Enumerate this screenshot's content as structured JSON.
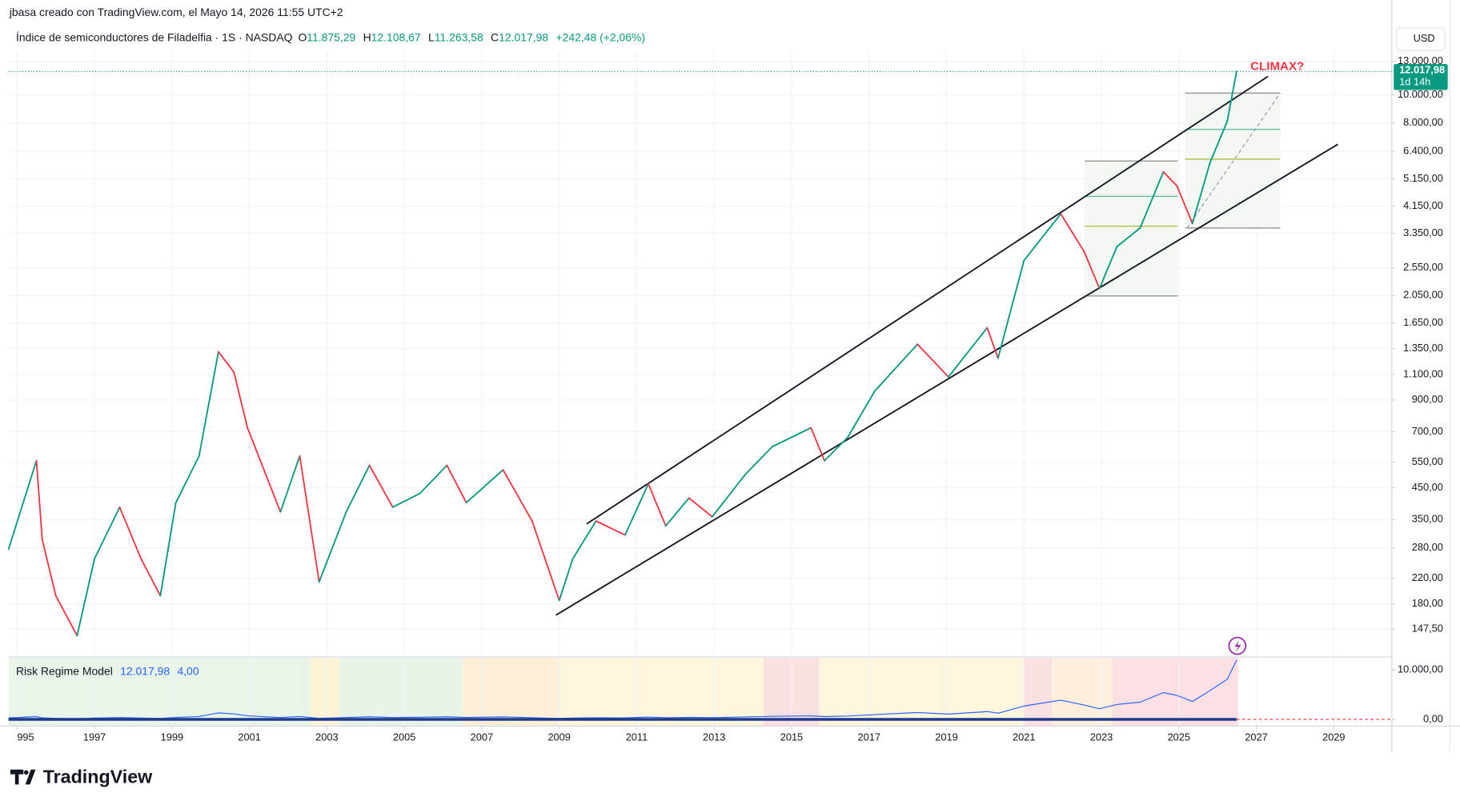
{
  "header": {
    "credit": "jbasa creado con TradingView.com, el Mayo 14, 2026 11:55 UTC+2",
    "currency": "USD",
    "logo": "TradingView"
  },
  "chart_data": [
    {
      "type": "line",
      "title": "Índice de semiconductores de Filadelfia · 1S · NASDAQ",
      "ohlc": [
        {
          "label": "O",
          "value": "11.875,29"
        },
        {
          "label": "H",
          "value": "12.108,67"
        },
        {
          "label": "L",
          "value": "11.263,58"
        },
        {
          "label": "C",
          "value": "12.017,98"
        }
      ],
      "change": "+242,48 (+2,06%)",
      "last_price": 12017.98,
      "last_price_label": "12.017,98",
      "countdown": "1d 14h",
      "annotation": "CLIMAX?",
      "x": [
        1994.78,
        1995.5,
        1995.65,
        1996.0,
        1996.55,
        1997.0,
        1997.65,
        1998.2,
        1998.7,
        1999.1,
        1999.7,
        2000.2,
        2000.6,
        2000.95,
        2001.8,
        2002.3,
        2002.8,
        2003.5,
        2004.1,
        2004.7,
        2005.4,
        2006.1,
        2006.6,
        2007.55,
        2008.3,
        2009.0,
        2009.35,
        2009.95,
        2010.7,
        2011.3,
        2011.75,
        2012.35,
        2012.95,
        2013.8,
        2014.5,
        2015.5,
        2015.85,
        2016.45,
        2017.15,
        2018.25,
        2019.05,
        2020.05,
        2020.33,
        2021.0,
        2021.95,
        2022.55,
        2022.95,
        2023.4,
        2024.0,
        2024.6,
        2024.95,
        2025.35,
        2025.8,
        2026.25,
        2026.49
      ],
      "values": [
        277,
        557,
        299,
        192,
        140,
        257,
        386,
        257,
        192,
        400,
        578,
        1316,
        1120,
        722,
        372,
        578,
        214,
        372,
        537,
        386,
        430,
        537,
        400,
        518,
        346,
        185,
        257,
        346,
        310,
        464,
        333,
        415,
        358,
        499,
        622,
        722,
        557,
        670,
        966,
        1396,
        1079,
        1591,
        1250,
        2703,
        3904,
        2908,
        2167,
        3016,
        3495,
        5440,
        4868,
        3621,
        5830,
        8125,
        12017.98
      ],
      "up_color": "#089981",
      "down_color": "#f23645",
      "xlim": [
        1994.78,
        2030.5
      ],
      "xticks": [
        {
          "value": 1995,
          "label": "995"
        },
        1997,
        1999,
        2001,
        2003,
        2005,
        2007,
        2009,
        2011,
        2013,
        2015,
        2017,
        2019,
        2021,
        2023,
        2025,
        2027,
        2029
      ],
      "ylim": [
        119.2,
        14100
      ],
      "yticks": [
        {
          "value": 13000,
          "label": "13.000,00"
        },
        {
          "value": 10000,
          "label": "10.000,00"
        },
        {
          "value": 8000,
          "label": "8.000,00"
        },
        {
          "value": 6400,
          "label": "6.400,00"
        },
        {
          "value": 5150,
          "label": "5.150,00"
        },
        {
          "value": 4150,
          "label": "4.150,00"
        },
        {
          "value": 3350,
          "label": "3.350,00"
        },
        {
          "value": 2550,
          "label": "2.550,00"
        },
        {
          "value": 2050,
          "label": "2.050,00"
        },
        {
          "value": 1650,
          "label": "1.650,00"
        },
        {
          "value": 1350,
          "label": "1.350,00"
        },
        {
          "value": 1100,
          "label": "1.100,00"
        },
        {
          "value": 900,
          "label": "900,00"
        },
        {
          "value": 700,
          "label": "700,00"
        },
        {
          "value": 550,
          "label": "550,00"
        },
        {
          "value": 450,
          "label": "450,00"
        },
        {
          "value": 350,
          "label": "350,00"
        },
        {
          "value": 280,
          "label": "280,00"
        },
        {
          "value": 220,
          "label": "220,00"
        },
        {
          "value": 180,
          "label": "180,00"
        },
        {
          "value": 147.5,
          "label": "147,50"
        }
      ],
      "log_scale": true,
      "grid": true
    },
    {
      "type": "line",
      "title": "Risk Regime Model",
      "value_text": "12.017,98",
      "regime": "4,00",
      "color": "#2962ff",
      "ylim": [
        -1321,
        12453
      ],
      "yticks": [
        {
          "value": 10000,
          "label": "10.000,00"
        },
        {
          "value": 0,
          "label": "0,00"
        }
      ]
    }
  ]
}
